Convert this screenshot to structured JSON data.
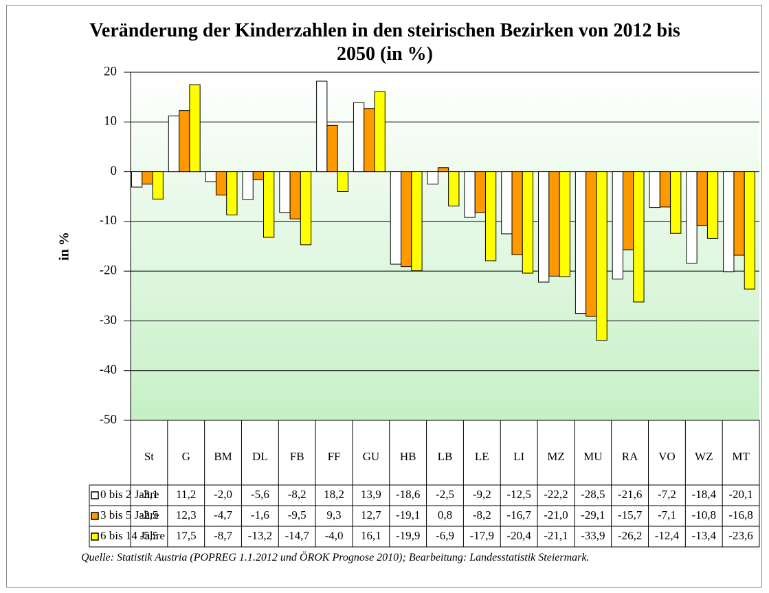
{
  "chart_data": {
    "type": "bar",
    "title": "Veränderung der Kinderzahlen in den steirischen Bezirken von 2012 bis 2050 (in %)",
    "y_label": "in %",
    "source": "Quelle: Statistik Austria (POPREG 1.1.2012 und ÖROK Prognose 2010); Bearbeitung: Landesstatistik Steiermark.",
    "categories": [
      "St",
      "G",
      "BM",
      "DL",
      "FB",
      "FF",
      "GU",
      "HB",
      "LB",
      "LE",
      "LI",
      "MZ",
      "MU",
      "RA",
      "VO",
      "WZ",
      "MT"
    ],
    "series": [
      {
        "name": "0 bis 2 Jahre",
        "color": "#ffffff",
        "values": [
          -3.1,
          11.2,
          -2.0,
          -5.6,
          -8.2,
          18.2,
          13.9,
          -18.6,
          -2.5,
          -9.2,
          -12.5,
          -22.2,
          -28.5,
          -21.6,
          -7.2,
          -18.4,
          -20.1
        ],
        "value_labels": [
          "-3,1",
          "11,2",
          "-2,0",
          "-5,6",
          "-8,2",
          "18,2",
          "13,9",
          "-18,6",
          "-2,5",
          "-9,2",
          "-12,5",
          "-22,2",
          "-28,5",
          "-21,6",
          "-7,2",
          "-18,4",
          "-20,1"
        ]
      },
      {
        "name": "3 bis 5 Jahre",
        "color": "#ff9900",
        "values": [
          -2.5,
          12.3,
          -4.7,
          -1.6,
          -9.5,
          9.3,
          12.7,
          -19.1,
          0.8,
          -8.2,
          -16.7,
          -21.0,
          -29.1,
          -15.7,
          -7.1,
          -10.8,
          -16.8
        ],
        "value_labels": [
          "-2,5",
          "12,3",
          "-4,7",
          "-1,6",
          "-9,5",
          "9,3",
          "12,7",
          "-19,1",
          "0,8",
          "-8,2",
          "-16,7",
          "-21,0",
          "-29,1",
          "-15,7",
          "-7,1",
          "-10,8",
          "-16,8"
        ]
      },
      {
        "name": "6 bis 14 Jahre",
        "color": "#ffff00",
        "values": [
          -5.5,
          17.5,
          -8.7,
          -13.2,
          -14.7,
          -4.0,
          16.1,
          -19.9,
          -6.9,
          -17.9,
          -20.4,
          -21.1,
          -33.9,
          -26.2,
          -12.4,
          -13.4,
          -23.6
        ],
        "value_labels": [
          "-5,5",
          "17,5",
          "-8,7",
          "-13,2",
          "-14,7",
          "-4,0",
          "16,1",
          "-19,9",
          "-6,9",
          "-17,9",
          "-20,4",
          "-21,1",
          "-33,9",
          "-26,2",
          "-12,4",
          "-13,4",
          "-23,6"
        ]
      }
    ],
    "ylim": [
      -50,
      20
    ],
    "yticks": [
      20,
      10,
      0,
      -10,
      -20,
      -30,
      -40,
      -50
    ],
    "grid": true
  }
}
